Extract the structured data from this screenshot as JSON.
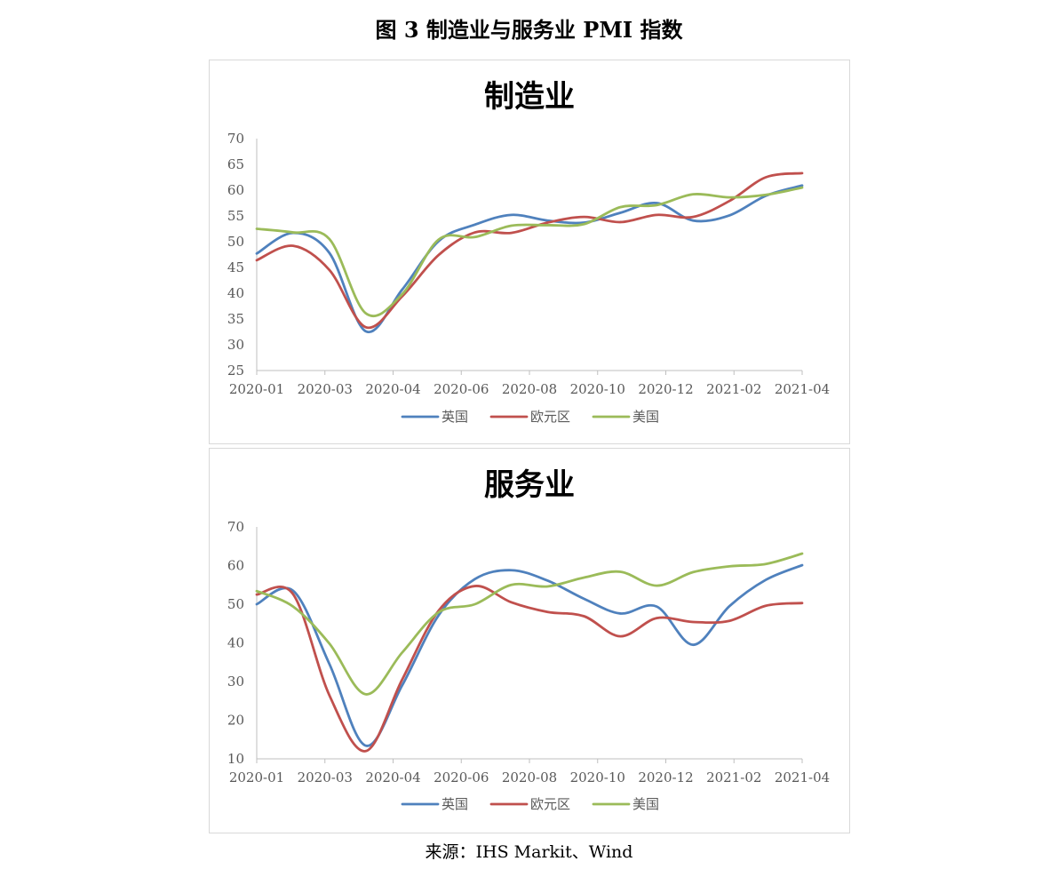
{
  "figure": {
    "title": "图 3 制造业与服务业 PMI 指数",
    "source": "来源：IHS Markit、Wind"
  },
  "series_style": [
    {
      "name": "英国",
      "color": "#4f81bd"
    },
    {
      "name": "欧元区",
      "color": "#c0504d"
    },
    {
      "name": "美国",
      "color": "#9bbb59"
    }
  ],
  "chart_data": [
    {
      "type": "line",
      "title": "制造业",
      "categories": [
        "2020-01",
        "2020-02",
        "2020-03",
        "2020-04",
        "2020-05",
        "2020-06",
        "2020-07",
        "2020-08",
        "2020-09",
        "2020-10",
        "2020-11",
        "2020-12",
        "2021-01",
        "2021-02",
        "2021-03",
        "2021-04"
      ],
      "x_tick_labels": [
        "2020-01",
        "2020-03",
        "2020-04",
        "2020-06",
        "2020-08",
        "2020-10",
        "2020-12",
        "2021-02",
        "2021-04"
      ],
      "ylim": [
        25,
        70
      ],
      "y_ticks": [
        25,
        30,
        35,
        40,
        45,
        50,
        55,
        60,
        65,
        70
      ],
      "legend": "bottom",
      "grid": false,
      "series": [
        {
          "name": "英国",
          "values": [
            47.7,
            51.7,
            47.8,
            32.6,
            40.7,
            50.1,
            53.3,
            55.2,
            54.1,
            53.7,
            55.6,
            57.5,
            54.1,
            55.1,
            58.9,
            60.9
          ]
        },
        {
          "name": "欧元区",
          "values": [
            46.4,
            49.2,
            44.5,
            33.4,
            39.4,
            47.4,
            51.8,
            51.7,
            53.7,
            54.8,
            53.8,
            55.2,
            54.8,
            57.9,
            62.5,
            63.3
          ]
        },
        {
          "name": "美国",
          "values": [
            52.5,
            51.8,
            50.5,
            36.1,
            39.8,
            50.4,
            50.9,
            53.1,
            53.2,
            53.4,
            56.7,
            57.1,
            59.2,
            58.6,
            59.1,
            60.5
          ]
        }
      ]
    },
    {
      "type": "line",
      "title": "服务业",
      "categories": [
        "2020-01",
        "2020-02",
        "2020-03",
        "2020-04",
        "2020-05",
        "2020-06",
        "2020-07",
        "2020-08",
        "2020-09",
        "2020-10",
        "2020-11",
        "2020-12",
        "2021-01",
        "2021-02",
        "2021-03",
        "2021-04"
      ],
      "x_tick_labels": [
        "2020-01",
        "2020-03",
        "2020-04",
        "2020-06",
        "2020-08",
        "2020-10",
        "2020-12",
        "2021-02",
        "2021-04"
      ],
      "ylim": [
        10,
        70
      ],
      "y_ticks": [
        10,
        20,
        30,
        40,
        50,
        60,
        70
      ],
      "legend": "bottom",
      "grid": false,
      "series": [
        {
          "name": "英国",
          "values": [
            50.0,
            53.5,
            34.5,
            13.4,
            29.0,
            47.1,
            56.5,
            58.8,
            56.1,
            51.4,
            47.6,
            49.4,
            39.5,
            49.5,
            56.3,
            60.1
          ]
        },
        {
          "name": "欧元区",
          "values": [
            52.5,
            52.6,
            26.4,
            12.0,
            30.5,
            48.3,
            54.7,
            50.5,
            48.0,
            46.9,
            41.7,
            46.4,
            45.4,
            45.7,
            49.6,
            50.3
          ]
        },
        {
          "name": "美国",
          "values": [
            53.4,
            49.4,
            39.8,
            26.7,
            37.5,
            47.9,
            50.0,
            55.0,
            54.6,
            56.9,
            58.4,
            54.8,
            58.3,
            59.8,
            60.4,
            63.1
          ]
        }
      ]
    }
  ]
}
